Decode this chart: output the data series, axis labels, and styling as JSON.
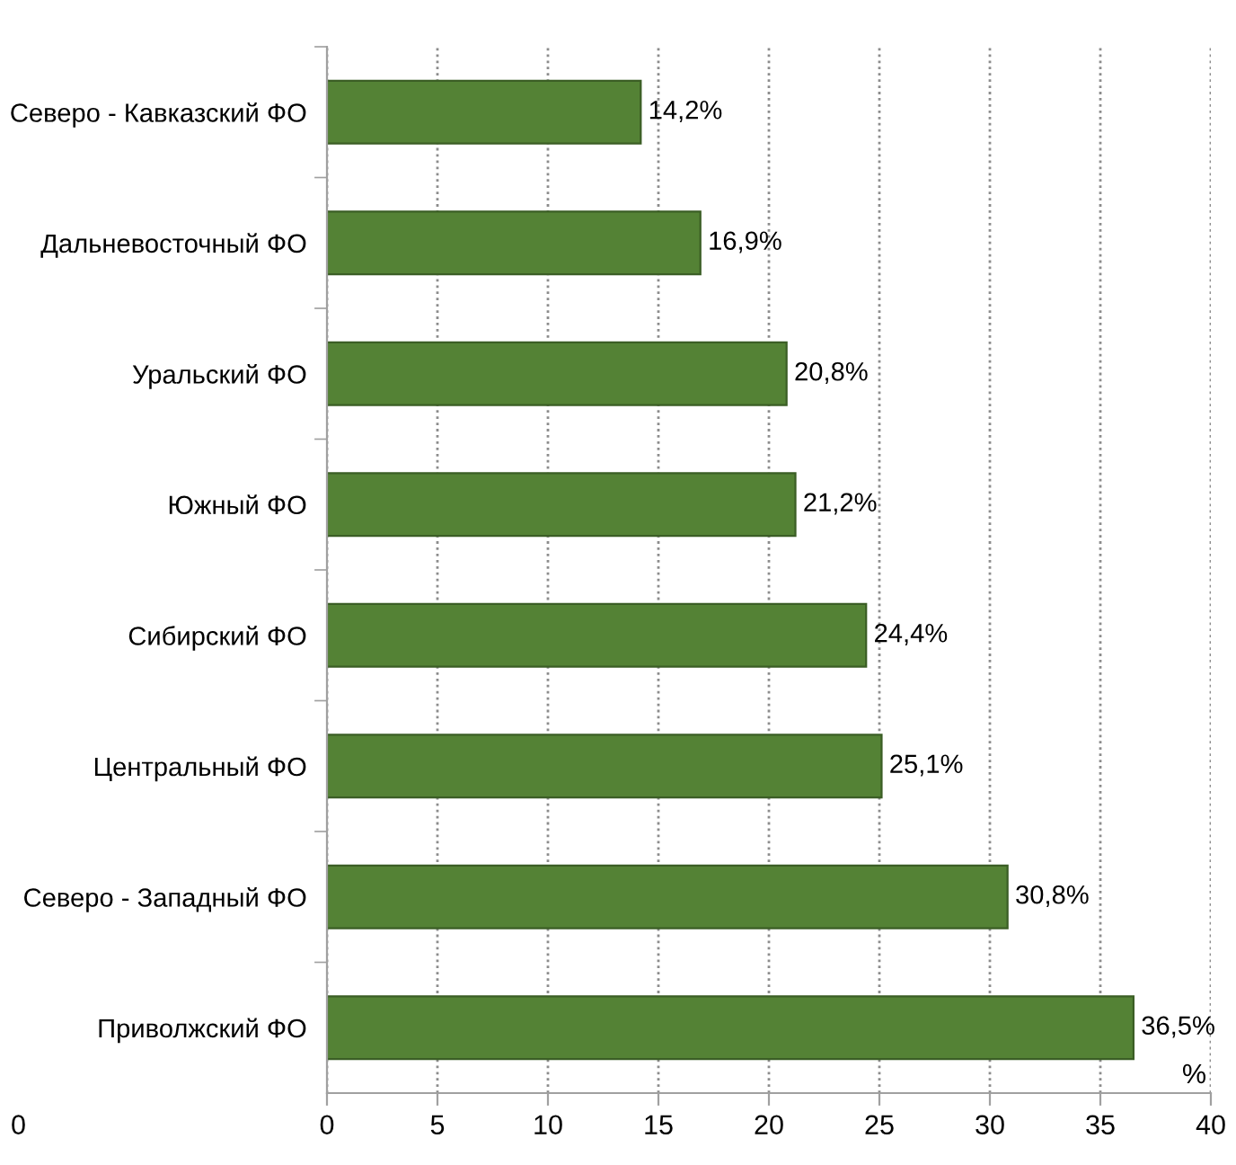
{
  "chart_data": {
    "type": "bar",
    "orientation": "horizontal",
    "categories": [
      "Северо - Кавказский ФО",
      "Дальневосточный ФО",
      "Уральский ФО",
      "Южный ФО",
      "Сибирский ФО",
      "Центральный ФО",
      "Северо - Западный ФО",
      "Приволжский ФО"
    ],
    "values": [
      14.2,
      16.9,
      20.8,
      21.2,
      24.4,
      25.1,
      30.8,
      36.5
    ],
    "value_labels": [
      "14,2%",
      "16,9%",
      "20,8%",
      "21,2%",
      "24,4%",
      "25,1%",
      "30,8%",
      "36,5%"
    ],
    "color": "#548235",
    "xlabel": "%",
    "xlim": [
      0,
      40
    ],
    "xticks": [
      0,
      5,
      10,
      15,
      20,
      25,
      30,
      35,
      40
    ],
    "grid": "x",
    "annotations": [
      "0"
    ]
  }
}
